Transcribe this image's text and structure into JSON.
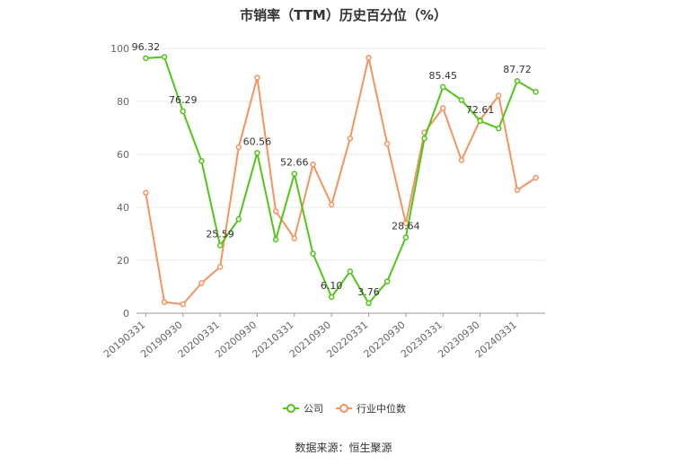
{
  "chart_data": {
    "type": "line",
    "title": "市销率（TTM）历史百分位（%）",
    "xlabel": "",
    "ylabel": "",
    "ylim": [
      0,
      100
    ],
    "yticks": [
      0,
      20,
      40,
      60,
      80,
      100
    ],
    "grid": true,
    "legend_position": "bottom",
    "x": [
      "20190331",
      "20190630",
      "20190930",
      "20191231",
      "20200331",
      "20200630",
      "20200930",
      "20201231",
      "20210331",
      "20210630",
      "20210930",
      "20211231",
      "20220331",
      "20220630",
      "20220930",
      "20221231",
      "20230331",
      "20230630",
      "20230930",
      "20231231",
      "20240331",
      "20240630"
    ],
    "xtick_labels": [
      "20190331",
      "20190930",
      "20200331",
      "20200930",
      "20210331",
      "20210930",
      "20220331",
      "20220930",
      "20230331",
      "20230930",
      "20240331"
    ],
    "series": [
      {
        "name": "公司",
        "color": "#52c41a",
        "values": [
          96.32,
          96.8,
          76.29,
          57.5,
          25.59,
          35.5,
          60.56,
          27.8,
          52.66,
          22.5,
          6.1,
          15.8,
          3.76,
          12.0,
          28.64,
          66.0,
          85.45,
          80.5,
          72.61,
          69.8,
          87.72,
          83.6
        ],
        "labels": {
          "0": "96.32",
          "2": "76.29",
          "4": "25.59",
          "6": "60.56",
          "8": "52.66",
          "10": "6.10",
          "12": "3.76",
          "14": "28.64",
          "16": "85.45",
          "18": "72.61",
          "20": "87.72"
        }
      },
      {
        "name": "行业中位数",
        "color": "#f4935f",
        "values": [
          45.5,
          4.2,
          3.4,
          11.4,
          17.5,
          62.7,
          89.0,
          38.5,
          28.3,
          56.2,
          41.0,
          66.0,
          96.5,
          64.0,
          34.0,
          68.2,
          77.5,
          57.8,
          73.0,
          82.2,
          46.5,
          51.2
        ],
        "labels": {}
      }
    ]
  },
  "source_text": "数据来源：恒生聚源"
}
